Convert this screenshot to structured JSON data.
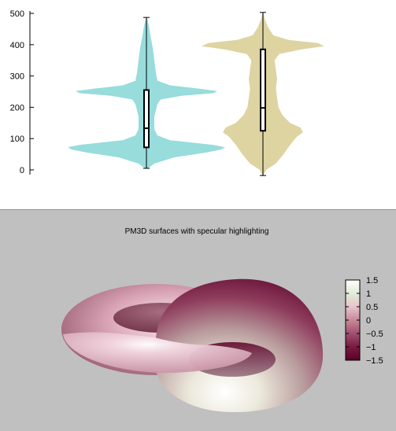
{
  "chart_data": [
    {
      "type": "violin",
      "title": "",
      "xlabel": "",
      "ylabel": "",
      "ylim": [
        0,
        500
      ],
      "yticks": [
        "0",
        "100",
        "200",
        "300",
        "400",
        "500"
      ],
      "grid": false,
      "series": [
        {
          "color": "#98dcdc",
          "min": 5,
          "q1": 72,
          "median": 133,
          "q3": 255,
          "max": 487,
          "density": [
            [
              5,
              0.02
            ],
            [
              20,
              0.1
            ],
            [
              40,
              0.35
            ],
            [
              55,
              0.75
            ],
            [
              65,
              0.95
            ],
            [
              72,
              1.0
            ],
            [
              80,
              0.85
            ],
            [
              95,
              0.3
            ],
            [
              110,
              0.14
            ],
            [
              130,
              0.1
            ],
            [
              150,
              0.1
            ],
            [
              170,
              0.1
            ],
            [
              190,
              0.12
            ],
            [
              210,
              0.14
            ],
            [
              225,
              0.18
            ],
            [
              237,
              0.45
            ],
            [
              245,
              0.85
            ],
            [
              252,
              0.9
            ],
            [
              260,
              0.65
            ],
            [
              270,
              0.3
            ],
            [
              285,
              0.14
            ],
            [
              310,
              0.12
            ],
            [
              350,
              0.1
            ],
            [
              390,
              0.08
            ],
            [
              430,
              0.05
            ],
            [
              460,
              0.03
            ],
            [
              487,
              0.005
            ]
          ]
        },
        {
          "color": "#ddd4a2",
          "min": -18,
          "q1": 125,
          "median": 198,
          "q3": 385,
          "max": 503,
          "density": [
            [
              -18,
              0.005
            ],
            [
              0,
              0.05
            ],
            [
              20,
              0.2
            ],
            [
              50,
              0.32
            ],
            [
              80,
              0.42
            ],
            [
              105,
              0.52
            ],
            [
              120,
              0.62
            ],
            [
              135,
              0.58
            ],
            [
              150,
              0.42
            ],
            [
              175,
              0.3
            ],
            [
              200,
              0.24
            ],
            [
              230,
              0.22
            ],
            [
              260,
              0.2
            ],
            [
              290,
              0.22
            ],
            [
              320,
              0.2
            ],
            [
              350,
              0.18
            ],
            [
              370,
              0.25
            ],
            [
              385,
              0.6
            ],
            [
              395,
              0.95
            ],
            [
              405,
              0.85
            ],
            [
              415,
              0.4
            ],
            [
              430,
              0.16
            ],
            [
              455,
              0.08
            ],
            [
              480,
              0.03
            ],
            [
              503,
              0.005
            ]
          ]
        }
      ]
    },
    {
      "type": "surface",
      "title": "PM3D surfaces with specular highlighting",
      "colorbar": {
        "range": [
          -1.5,
          1.5
        ],
        "ticks": [
          "1.5",
          "1",
          "0.5",
          "0",
          "−0.5",
          "−1",
          "−1.5"
        ],
        "colors": [
          "#ffffff",
          "#e0ecd8",
          "#e8c4cc",
          "#c88898",
          "#a05070",
          "#7a1a40",
          "#5a0028"
        ]
      }
    }
  ]
}
